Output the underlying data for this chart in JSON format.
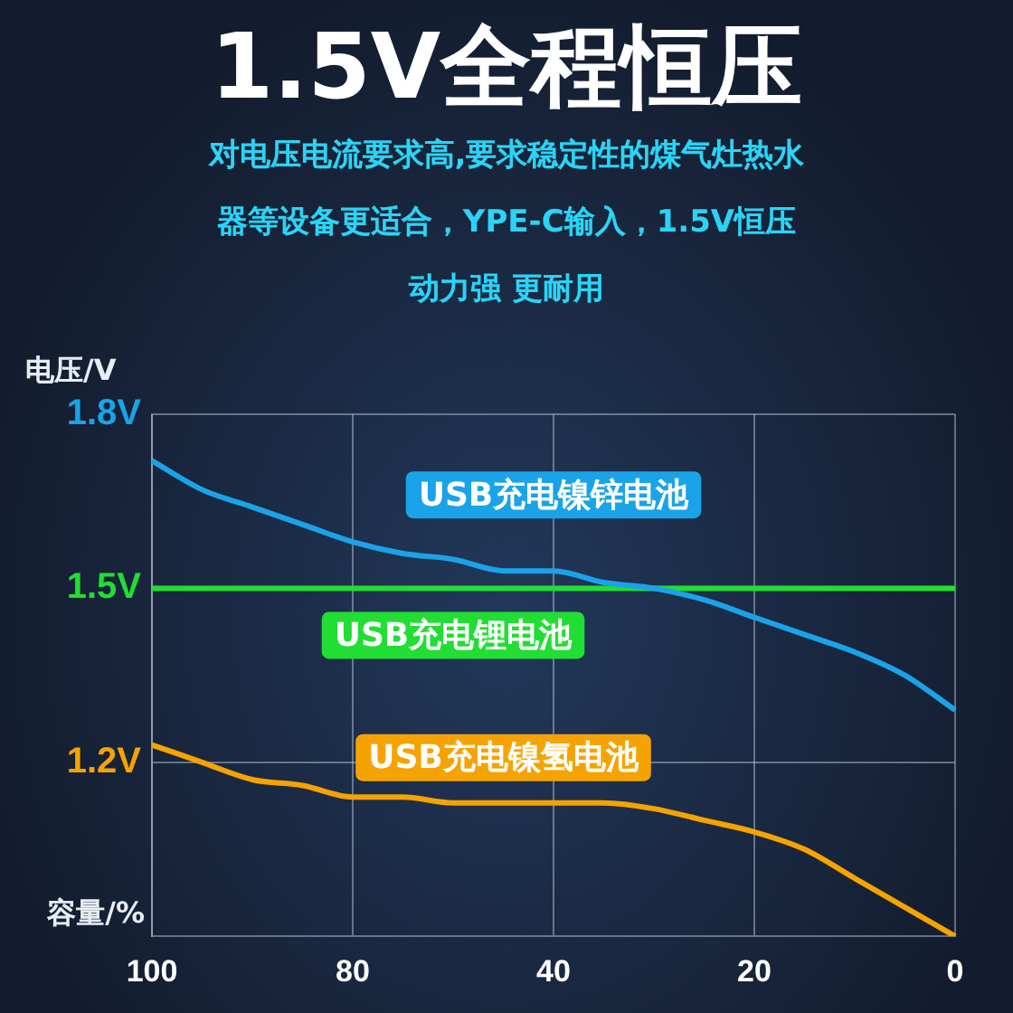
{
  "chart_data": {
    "type": "line",
    "title": "1.5V全程恒压",
    "subtitle": "对电压电流要求高,要求稳定性的煤气灶热水器等设备更适合，YPE-C输入，1.5V恒压动力强 更耐用",
    "xlabel": "容量/%",
    "ylabel": "电压/V",
    "categories": [
      "100",
      null,
      null,
      null,
      "80",
      null,
      null,
      null,
      "40",
      null,
      null,
      null,
      "20",
      null,
      null,
      null,
      "0"
    ],
    "series": [
      {
        "name": "USB充电镍锌电池",
        "color": "#1aa3e8",
        "values": [
          1.72,
          1.67,
          1.64,
          1.61,
          1.58,
          1.56,
          1.55,
          1.53,
          1.53,
          1.51,
          1.5,
          1.48,
          1.45,
          1.42,
          1.39,
          1.35,
          1.29
        ]
      },
      {
        "name": "USB充电锂电池",
        "color": "#22dd33",
        "values": [
          1.5,
          1.5,
          1.5,
          1.5,
          1.5,
          1.5,
          1.5,
          1.5,
          1.5,
          1.5,
          1.5,
          1.5,
          1.5,
          1.5,
          1.5,
          1.5,
          1.5
        ]
      },
      {
        "name": "USB充电镍氢电池",
        "color": "#f5a300",
        "values": [
          1.23,
          1.2,
          1.17,
          1.16,
          1.14,
          1.14,
          1.13,
          1.13,
          1.13,
          1.13,
          1.12,
          1.1,
          1.08,
          1.05,
          1.0,
          0.95,
          0.9
        ]
      }
    ],
    "ylim": [
      0.9,
      1.8
    ],
    "yticks": [
      {
        "value": 1.8,
        "label": "1.8V"
      },
      {
        "value": 1.5,
        "label": "1.5V"
      },
      {
        "value": 1.2,
        "label": "1.2V"
      }
    ],
    "grid": true,
    "legend": false,
    "marker": "none",
    "line_style": "solid"
  }
}
